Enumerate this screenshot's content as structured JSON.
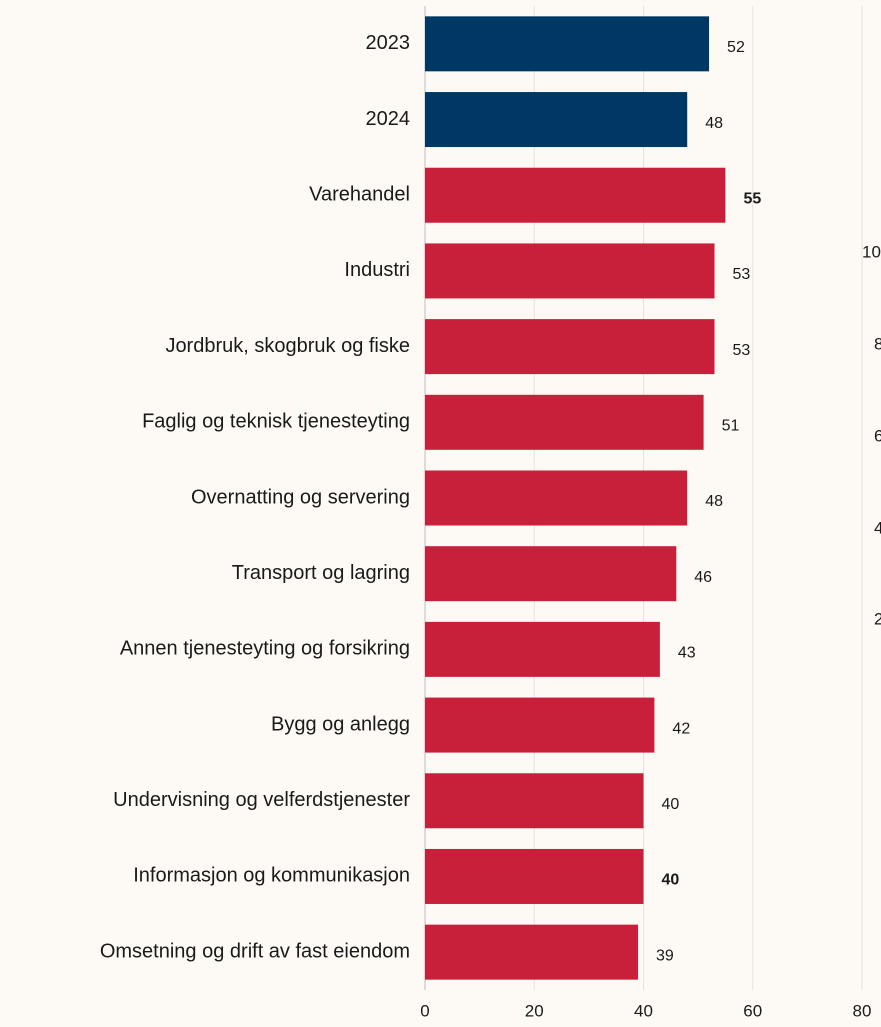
{
  "chart_data": {
    "type": "hbar",
    "categories": [
      "2023",
      "2024",
      "Varehandel",
      "Industri",
      "Jordbruk, skogbruk og fiske",
      "Faglig og teknisk tjenesteyting",
      "Overnatting og servering",
      "Transport og lagring",
      "Annen tjenesteyting og forsikring",
      "Bygg og anlegg",
      "Undervisning og velferdstjenester",
      "Informasjon og kommunikasjon",
      "Omsetning og drift av fast eiendom"
    ],
    "values": [
      52,
      48,
      55,
      53,
      53,
      51,
      48,
      46,
      43,
      42,
      40,
      40,
      39
    ],
    "colors": [
      "#003865",
      "#003865",
      "#c8203a",
      "#c8203a",
      "#c8203a",
      "#c8203a",
      "#c8203a",
      "#c8203a",
      "#c8203a",
      "#c8203a",
      "#c8203a",
      "#c8203a",
      "#c8203a"
    ],
    "value_label_bold": [
      false,
      false,
      true,
      false,
      false,
      false,
      false,
      false,
      false,
      false,
      false,
      true,
      false
    ],
    "xlim": [
      0,
      80
    ],
    "xticks": [
      0,
      20,
      40,
      60,
      80
    ],
    "grid": true
  },
  "clipped_labels": [
    "10",
    "8",
    "6",
    "4",
    "2"
  ]
}
